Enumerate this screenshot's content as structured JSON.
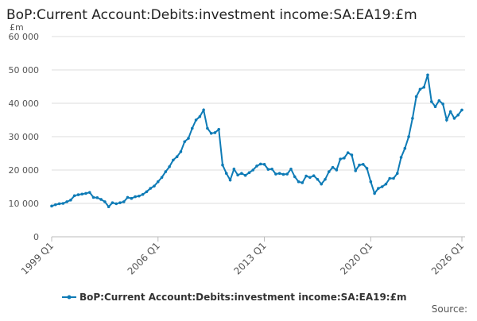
{
  "chart_data": {
    "type": "line",
    "title": "BoP:Current Account:Debits:investment income:SA:EA19:£m",
    "y_unit": "£m",
    "source": "Source:",
    "categories": [
      "1999 Q1",
      null,
      null,
      null,
      null,
      null,
      null,
      null,
      null,
      null,
      null,
      null,
      null,
      null,
      null,
      null,
      null,
      null,
      null,
      null,
      null,
      null,
      null,
      null,
      null,
      null,
      null,
      null,
      "2006 Q1",
      null,
      null,
      null,
      null,
      null,
      null,
      null,
      null,
      null,
      null,
      null,
      null,
      null,
      null,
      null,
      null,
      null,
      null,
      null,
      null,
      null,
      null,
      null,
      null,
      null,
      null,
      null,
      "2013 Q1",
      null,
      null,
      null,
      null,
      null,
      null,
      null,
      null,
      null,
      null,
      null,
      null,
      null,
      null,
      null,
      null,
      null,
      null,
      null,
      null,
      null,
      null,
      null,
      null,
      null,
      null,
      null,
      "2020 Q1",
      null,
      null,
      null,
      null,
      null,
      null,
      null,
      null,
      null,
      null,
      null,
      null,
      null,
      null,
      null,
      null,
      null,
      null,
      null,
      null,
      null,
      null,
      null,
      "2026 Q1"
    ],
    "series": [
      {
        "name": "BoP:Current Account:Debits:investment income:SA:EA19:£m",
        "color": "#0e7bb6",
        "values": [
          9200,
          9600,
          9900,
          10000,
          10500,
          11000,
          12300,
          12600,
          12800,
          13000,
          13300,
          11800,
          11700,
          11200,
          10500,
          9000,
          10200,
          9900,
          10200,
          10500,
          11800,
          11500,
          12000,
          12200,
          12700,
          13500,
          14500,
          15200,
          16500,
          17800,
          19500,
          21000,
          23000,
          24000,
          25500,
          28500,
          29500,
          32500,
          35000,
          36000,
          38000,
          32500,
          31000,
          31200,
          32200,
          21500,
          19000,
          17000,
          20300,
          18500,
          19000,
          18400,
          19200,
          20000,
          21200,
          21800,
          21700,
          20200,
          20300,
          18800,
          19000,
          18700,
          18800,
          20300,
          18000,
          16500,
          16200,
          18200,
          17800,
          18300,
          17200,
          15800,
          17200,
          19500,
          20800,
          20000,
          23300,
          23600,
          25200,
          24500,
          19800,
          21500,
          21700,
          20500,
          16500,
          13000,
          14500,
          15000,
          15800,
          17500,
          17500,
          19000,
          23800,
          26500,
          30000,
          35500,
          42000,
          44200,
          44800,
          48500,
          40500,
          39000,
          40800,
          39800,
          35000,
          37500,
          35500,
          36500,
          38000
        ]
      }
    ],
    "ylim": [
      0,
      60000
    ],
    "yticks": [
      0,
      {
        "value": 10000,
        "label": "10 000"
      },
      {
        "value": 20000,
        "label": "20 000"
      },
      {
        "value": 30000,
        "label": "30 000"
      },
      {
        "value": 40000,
        "label": "40 000"
      },
      {
        "value": 50000,
        "label": "50 000"
      },
      {
        "value": 60000,
        "label": "60 000"
      }
    ],
    "grid": true
  }
}
